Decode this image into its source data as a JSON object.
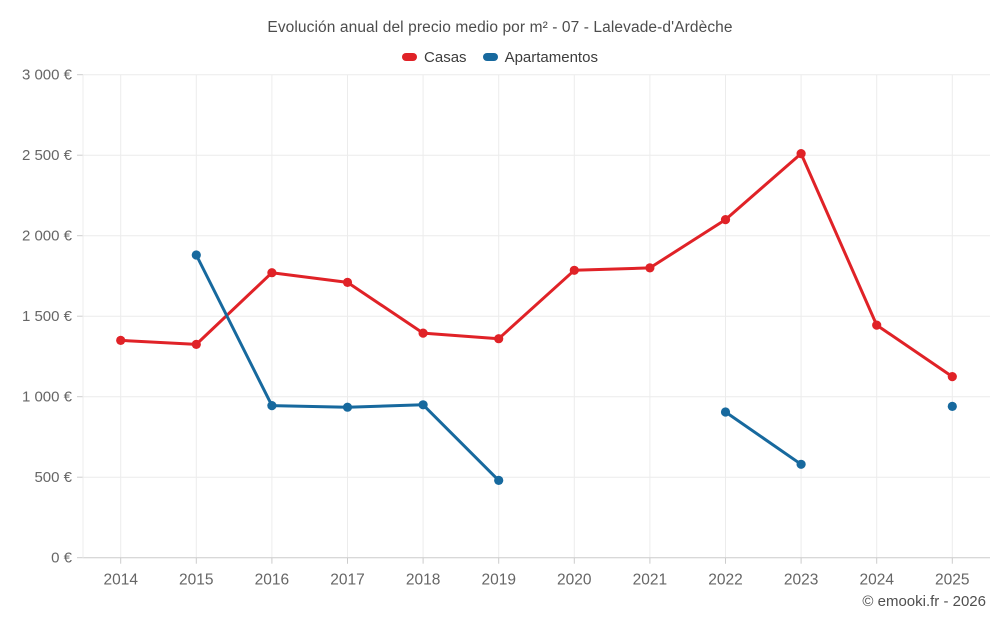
{
  "title": "Evolución anual del precio medio por m² - 07 - Lalevade-d'Ardèche",
  "footer": "© emooki.fr - 2026",
  "legend": {
    "items": [
      {
        "label": "Casas",
        "color": "#e02227"
      },
      {
        "label": "Apartamentos",
        "color": "#17699e"
      }
    ]
  },
  "colors": {
    "background": "#ffffff",
    "grid": "#ececec",
    "axis": "#cccccc",
    "title_text": "#4d4d4d",
    "tick_text": "#666666",
    "footer_text": "#4f4f4f",
    "casas": "#e02227",
    "apartamentos": "#17699e"
  },
  "chart_data": {
    "type": "line",
    "title": "Evolución anual del precio medio por m² - 07 - Lalevade-d'Ardèche",
    "categories": [
      "2014",
      "2015",
      "2016",
      "2017",
      "2018",
      "2019",
      "2020",
      "2021",
      "2022",
      "2023",
      "2024",
      "2025"
    ],
    "series": [
      {
        "name": "Casas",
        "color": "#e02227",
        "values": [
          1350,
          1325,
          1770,
          1710,
          1395,
          1360,
          1785,
          1800,
          2100,
          2510,
          1445,
          1125
        ]
      },
      {
        "name": "Apartamentos",
        "color": "#17699e",
        "values": [
          null,
          1880,
          945,
          935,
          950,
          480,
          null,
          null,
          905,
          580,
          null,
          940
        ]
      }
    ],
    "xlabel": "",
    "ylabel": "",
    "ylim": [
      0,
      3000
    ],
    "ytick_step": 500,
    "ytick_labels": [
      "0 €",
      "500 €",
      "1 000 €",
      "1 500 €",
      "2 000 €",
      "2 500 €",
      "3 000 €"
    ],
    "grid": true,
    "legend_position": "top",
    "marker": "circle"
  }
}
